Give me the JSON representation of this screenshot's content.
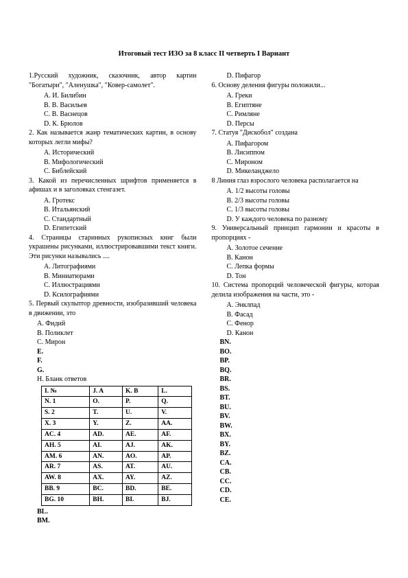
{
  "title": "Итоговый тест ИЗО за 8 класс II четверть I Вариант",
  "left": {
    "q1": "1.Русский художник, сказочник, автор картин \"Богатыри\", \"Аленушка\", \"Ковер-самолет\".",
    "q1a": "A. И. Билибин",
    "q1b": "B. В. Васильев",
    "q1c": "C. В. Васнецов",
    "q1d": "D. К. Брюлов",
    "q2": "2. Как называется жанр тематических картин, в основу которых легли мифы?",
    "q2a": "A. Исторический",
    "q2b": "B. Мифологический",
    "q2c": "C. Библейский",
    "q3": "3. Какой из перечисленных шрифтов применяется в афишах и в заголовках стенгазет.",
    "q3a": "A. Гротекс",
    "q3b": "B. Итальянский",
    "q3c": "C. Стандартный",
    "q3d": "D. Египетский",
    "q4": "4. Страницы старинных рукописных книг были украшены рисунками, иллюстрировавшими текст книги. Эти рисунки назывались ....",
    "q4a": "A. Литографиями",
    "q4b": "B. Миниатюрами",
    "q4c": "C. Иллюстрациями",
    "q4d": "D. Ксилографиями",
    "q5": "5. Первый скульптор древности, изобразивший человека в движении, это",
    "q5a": "A. Фидий",
    "q5b": "B. Поликлет",
    "q5c": "C. Мирон",
    "e": "E.",
    "f": "F.",
    "g": "G.",
    "h": "H. Бланк ответов",
    "bl": "BL.",
    "bm": "BM.",
    "table": {
      "rows": [
        [
          "I.      №",
          "J.      A",
          "K.      B",
          "L."
        ],
        [
          "N.     1",
          "O.",
          "P.",
          "Q."
        ],
        [
          "S.     2",
          "T.",
          "U.",
          "V."
        ],
        [
          "X.     3",
          "Y.",
          "Z.",
          "AA."
        ],
        [
          "AC.   4",
          "AD.",
          "AE.",
          "AF."
        ],
        [
          "AH.   5",
          "AI.",
          "AJ.",
          "AK."
        ],
        [
          "AM.  6",
          "AN.",
          "AO.",
          "AP."
        ],
        [
          "AR.   7",
          "AS.",
          "AT.",
          "AU."
        ],
        [
          "AW.  8",
          "AX.",
          "AY.",
          "AZ."
        ],
        [
          "BB.   9",
          "BC.",
          "BD.",
          "BE."
        ],
        [
          "BG.   10",
          "BH.",
          "BI.",
          "BJ."
        ]
      ]
    }
  },
  "right": {
    "q5d": "D. Пифагор",
    "q6": "6. Основу деления фигуры положили...",
    "q6a": "A. Греки",
    "q6b": "B. Египтяне",
    "q6c": "C. Римляне",
    "q6d": "D. Персы",
    "q7": "7. Статуя \"Дискобол\" создана",
    "q7a": "A. Пифагором",
    "q7b": "B. Лисиппом",
    "q7c": "C. Мироном",
    "q7d": "D. Микеланджело",
    "q8": "8 Линия глаз взрослого человека располагается на",
    "q8a": "A. 1/2 высоты головы",
    "q8b": "B. 2/3 высоты головы",
    "q8c": "C. 1/3 высоты головы",
    "q8d": "D. У каждого человека по разному",
    "q9": "9. Универсальный принцип гармонии и красоты в пропорциях -",
    "q9a": "A. Золотое сечение",
    "q9b": "B. Канон",
    "q9c": "C. Лепка формы",
    "q9d": "D. Тон",
    "q10": "10. Система пропорций человеческой фигуры, которая делила изображения на части, это -",
    "q10a": "A. Энклпад",
    "q10b": "B. Фасад",
    "q10c": "C. Фенор",
    "q10d": "D. Канон",
    "tail": [
      "BN.",
      "BO.",
      "BP.",
      "BQ.",
      "BR.",
      "BS.",
      "BT.",
      "BU.",
      "BV.",
      "BW.",
      "BX.",
      "BY.",
      "BZ.",
      "CA.",
      "CB.",
      "CC.",
      "CD.",
      "CE."
    ]
  }
}
